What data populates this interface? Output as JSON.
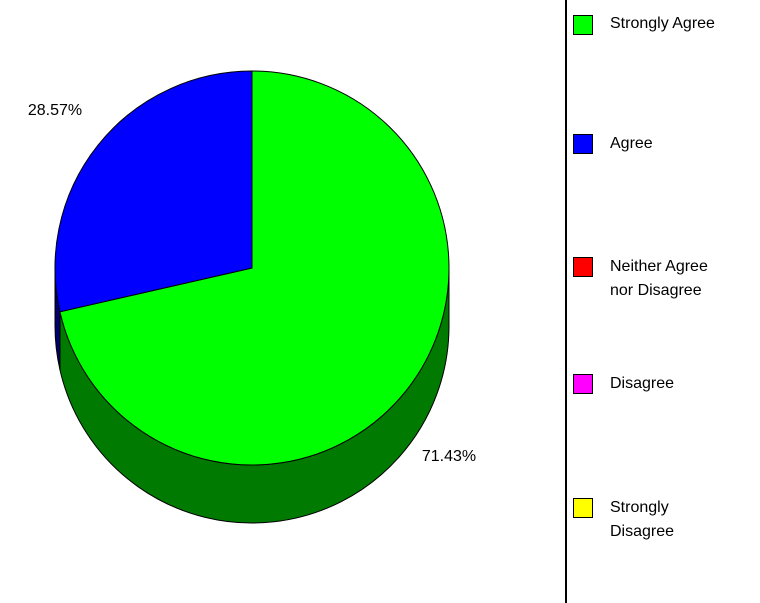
{
  "chart_data": {
    "type": "pie",
    "title": "",
    "slices": [
      {
        "label": "Strongly Agree",
        "value": 71.43,
        "value_label": "71.43%",
        "color": "#00ff00",
        "shade": "#007a00"
      },
      {
        "label": "Agree",
        "value": 28.57,
        "value_label": "28.57%",
        "color": "#0000ff",
        "shade": "#00006e"
      },
      {
        "label": "Neither Agree\nnor Disagree",
        "value": 0,
        "value_label": "",
        "color": "#ff0000",
        "shade": "#7a0000"
      },
      {
        "label": "Disagree",
        "value": 0,
        "value_label": "",
        "color": "#ff00ff",
        "shade": "#7a007a"
      },
      {
        "label": "Strongly\nDisagree",
        "value": 0,
        "value_label": "",
        "color": "#ffff00",
        "shade": "#7a7a00"
      }
    ],
    "legend": "right",
    "three_d": true
  }
}
